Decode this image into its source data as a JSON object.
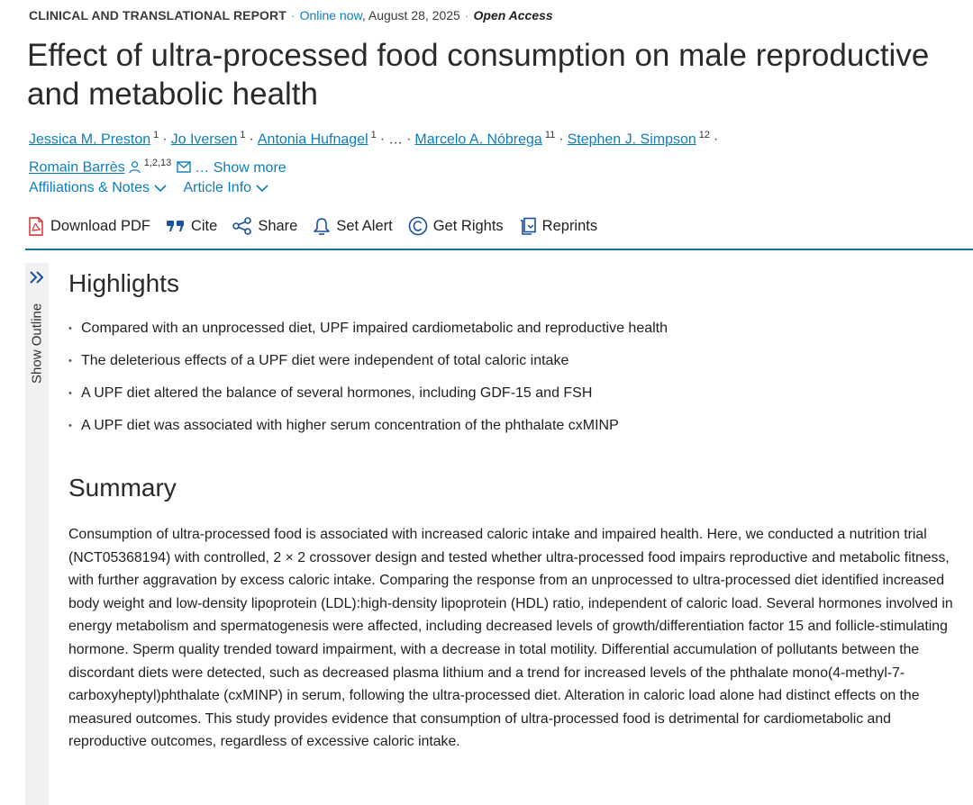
{
  "header": {
    "section_label": "CLINICAL AND TRANSLATIONAL REPORT",
    "separator": "·",
    "online_label": "Online now",
    "date": ", August 28, 2025",
    "access_label": "Open Access"
  },
  "article": {
    "title": "Effect of ultra-processed food consumption on male reproductive and metabolic health"
  },
  "authors": {
    "list": [
      {
        "name": "Jessica M. Preston",
        "affil": "1"
      },
      {
        "name": "Jo Iversen",
        "affil": "1"
      },
      {
        "name": "Antonia Hufnagel",
        "affil": "1"
      },
      {
        "name": "Marcelo A. Nóbrega",
        "affil": "11"
      },
      {
        "name": "Stephen J. Simpson",
        "affil": "12"
      },
      {
        "name": "Romain Barrès",
        "affil": "1,2,13"
      }
    ],
    "separator": "·",
    "ellipsis": "…",
    "show_more": "… Show more"
  },
  "links": {
    "affiliations": "Affiliations & Notes",
    "article_info": "Article Info"
  },
  "toolbar": {
    "download_pdf": "Download PDF",
    "cite": "Cite",
    "share": "Share",
    "set_alert": "Set Alert",
    "get_rights": "Get Rights",
    "reprints": "Reprints"
  },
  "outline": {
    "label": "Show Outline"
  },
  "highlights": {
    "heading": "Highlights",
    "items": [
      "Compared with an unprocessed diet, UPF impaired cardiometabolic and reproductive health",
      "The deleterious effects of a UPF diet were independent of total caloric intake",
      "A UPF diet altered the balance of several hormones, including GDF-15 and FSH",
      "A UPF diet was associated with higher serum concentration of the phthalate cxMINP"
    ]
  },
  "summary": {
    "heading": "Summary",
    "text": "Consumption of ultra-processed food is associated with increased caloric intake and impaired health. Here, we conducted a nutrition trial (NCT05368194) with controlled, 2 × 2 crossover design and tested whether ultra-processed food impairs reproductive and metabolic fitness, with further aggravation by excess caloric intake. Comparing the response from an unprocessed to ultra-processed diet identified increased body weight and low-density lipoprotein (LDL):high-density lipoprotein (HDL) ratio, independent of caloric load. Several hormones involved in energy metabolism and spermatogenesis were affected, including decreased levels of growth/differentiation factor 15 and follicle-stimulating hormone. Sperm quality trended toward impairment, with a decrease in total motility. Differential accumulation of pollutants between the discordant diets were detected, such as decreased plasma lithium and a trend for increased levels of the phthalate mono(4-methyl-7-carboxyheptyl)phthalate (cxMINP) in serum, following the ultra-processed diet. Alteration in caloric load alone had distinct effects on the measured outcomes. This study provides evidence that consumption of ultra-processed food is detrimental for cardiometabolic and reproductive outcomes, regardless of excessive caloric intake."
  },
  "colors": {
    "link": "#0c7dbb",
    "rule": "#1f6f9a",
    "text": "#1f1f1f",
    "pdf_red": "#d2232a",
    "cite_blue": "#1b4fa0",
    "rail_bg": "#f1f1f1"
  },
  "icons": {
    "pdf": "pdf-icon",
    "cite": "quote-icon",
    "share": "share-icon",
    "alert": "bell-icon",
    "rights": "copyright-icon",
    "reprints": "reprints-icon",
    "person": "person-icon",
    "mail": "mail-icon",
    "chevron": "chevron-down-icon",
    "outline": "double-chevron-right-icon"
  }
}
